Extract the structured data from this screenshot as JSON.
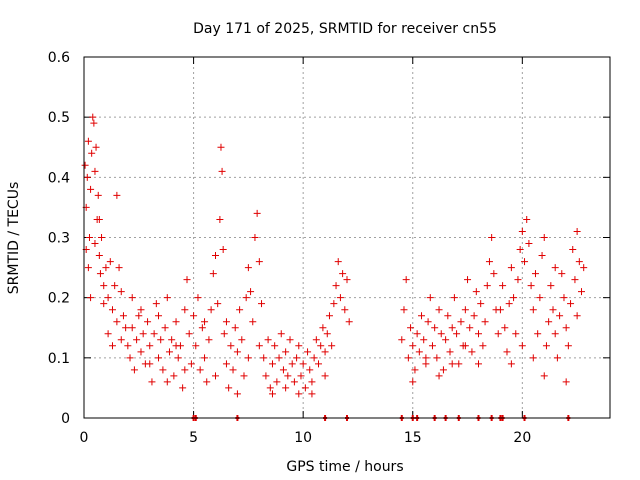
{
  "chart_data": {
    "type": "scatter",
    "title": "Day 171 of 2025, SRMTID for receiver cn55",
    "xlabel": "GPS time / hours",
    "ylabel": "SRMTID / TECUs",
    "xlim": [
      0,
      24
    ],
    "ylim": [
      0,
      0.6
    ],
    "xticks": [
      0,
      5,
      10,
      15,
      20
    ],
    "xtick_labels": [
      "0",
      "5",
      "10",
      "15",
      "20"
    ],
    "yticks": [
      0,
      0.1,
      0.2,
      0.3,
      0.4,
      0.5,
      0.6
    ],
    "ytick_labels": [
      "0",
      "0.1",
      "0.2",
      "0.3",
      "0.4",
      "0.5",
      "0.6"
    ],
    "grid": true,
    "marker": "+",
    "color": "#e00000",
    "series": [
      {
        "name": "SRMTID",
        "points": [
          [
            0.05,
            0.42
          ],
          [
            0.1,
            0.35
          ],
          [
            0.15,
            0.4
          ],
          [
            0.2,
            0.46
          ],
          [
            0.25,
            0.3
          ],
          [
            0.3,
            0.38
          ],
          [
            0.35,
            0.44
          ],
          [
            0.4,
            0.5
          ],
          [
            0.45,
            0.49
          ],
          [
            0.5,
            0.41
          ],
          [
            0.55,
            0.45
          ],
          [
            0.6,
            0.33
          ],
          [
            0.65,
            0.37
          ],
          [
            0.7,
            0.27
          ],
          [
            0.75,
            0.24
          ],
          [
            0.8,
            0.3
          ],
          [
            0.9,
            0.22
          ],
          [
            1.0,
            0.25
          ],
          [
            1.1,
            0.2
          ],
          [
            1.2,
            0.26
          ],
          [
            1.3,
            0.18
          ],
          [
            1.4,
            0.22
          ],
          [
            1.5,
            0.37
          ],
          [
            1.6,
            0.25
          ],
          [
            1.7,
            0.21
          ],
          [
            1.8,
            0.17
          ],
          [
            1.9,
            0.15
          ],
          [
            0.1,
            0.28
          ],
          [
            0.2,
            0.25
          ],
          [
            0.3,
            0.2
          ],
          [
            0.5,
            0.29
          ],
          [
            0.7,
            0.33
          ],
          [
            0.9,
            0.19
          ],
          [
            1.1,
            0.14
          ],
          [
            1.3,
            0.12
          ],
          [
            1.5,
            0.16
          ],
          [
            1.7,
            0.13
          ],
          [
            2.0,
            0.12
          ],
          [
            2.1,
            0.1
          ],
          [
            2.2,
            0.15
          ],
          [
            2.3,
            0.08
          ],
          [
            2.4,
            0.13
          ],
          [
            2.5,
            0.17
          ],
          [
            2.6,
            0.11
          ],
          [
            2.7,
            0.14
          ],
          [
            2.8,
            0.09
          ],
          [
            2.9,
            0.16
          ],
          [
            3.0,
            0.12
          ],
          [
            3.1,
            0.06
          ],
          [
            3.2,
            0.14
          ],
          [
            3.3,
            0.19
          ],
          [
            3.4,
            0.1
          ],
          [
            3.5,
            0.13
          ],
          [
            3.6,
            0.08
          ],
          [
            3.7,
            0.15
          ],
          [
            3.8,
            0.2
          ],
          [
            3.9,
            0.11
          ],
          [
            4.0,
            0.13
          ],
          [
            4.1,
            0.07
          ],
          [
            4.2,
            0.16
          ],
          [
            4.3,
            0.1
          ],
          [
            4.4,
            0.12
          ],
          [
            4.5,
            0.05
          ],
          [
            4.6,
            0.18
          ],
          [
            4.7,
            0.23
          ],
          [
            4.8,
            0.14
          ],
          [
            4.9,
            0.09
          ],
          [
            5.0,
            0.17
          ],
          [
            2.2,
            0.2
          ],
          [
            2.6,
            0.18
          ],
          [
            3.0,
            0.09
          ],
          [
            3.4,
            0.17
          ],
          [
            3.8,
            0.06
          ],
          [
            4.2,
            0.12
          ],
          [
            4.6,
            0.08
          ],
          [
            5.1,
            0.12
          ],
          [
            5.2,
            0.2
          ],
          [
            5.3,
            0.08
          ],
          [
            5.4,
            0.15
          ],
          [
            5.5,
            0.1
          ],
          [
            5.6,
            0.06
          ],
          [
            5.7,
            0.13
          ],
          [
            5.8,
            0.18
          ],
          [
            5.9,
            0.24
          ],
          [
            6.0,
            0.27
          ],
          [
            6.1,
            0.19
          ],
          [
            6.2,
            0.33
          ],
          [
            6.25,
            0.45
          ],
          [
            6.3,
            0.41
          ],
          [
            6.35,
            0.28
          ],
          [
            6.4,
            0.14
          ],
          [
            6.5,
            0.09
          ],
          [
            6.6,
            0.05
          ],
          [
            6.7,
            0.12
          ],
          [
            6.8,
            0.08
          ],
          [
            6.9,
            0.15
          ],
          [
            7.0,
            0.11
          ],
          [
            7.1,
            0.18
          ],
          [
            7.2,
            0.13
          ],
          [
            7.3,
            0.07
          ],
          [
            7.4,
            0.2
          ],
          [
            7.5,
            0.25
          ],
          [
            7.6,
            0.21
          ],
          [
            7.7,
            0.16
          ],
          [
            7.8,
            0.3
          ],
          [
            7.9,
            0.34
          ],
          [
            8.0,
            0.26
          ],
          [
            8.1,
            0.19
          ],
          [
            5.5,
            0.16
          ],
          [
            6.0,
            0.07
          ],
          [
            6.5,
            0.16
          ],
          [
            7.0,
            0.04
          ],
          [
            7.5,
            0.1
          ],
          [
            8.0,
            0.12
          ],
          [
            8.2,
            0.1
          ],
          [
            8.3,
            0.07
          ],
          [
            8.4,
            0.13
          ],
          [
            8.5,
            0.05
          ],
          [
            8.6,
            0.09
          ],
          [
            8.7,
            0.12
          ],
          [
            8.8,
            0.06
          ],
          [
            8.9,
            0.1
          ],
          [
            9.0,
            0.14
          ],
          [
            9.1,
            0.08
          ],
          [
            9.2,
            0.11
          ],
          [
            9.3,
            0.07
          ],
          [
            9.4,
            0.13
          ],
          [
            9.5,
            0.09
          ],
          [
            9.6,
            0.06
          ],
          [
            9.7,
            0.1
          ],
          [
            9.8,
            0.12
          ],
          [
            9.9,
            0.07
          ],
          [
            10.0,
            0.09
          ],
          [
            10.1,
            0.05
          ],
          [
            10.2,
            0.11
          ],
          [
            10.3,
            0.08
          ],
          [
            10.4,
            0.06
          ],
          [
            10.5,
            0.1
          ],
          [
            10.6,
            0.13
          ],
          [
            10.7,
            0.09
          ],
          [
            10.8,
            0.12
          ],
          [
            10.9,
            0.15
          ],
          [
            11.0,
            0.11
          ],
          [
            11.1,
            0.14
          ],
          [
            11.2,
            0.17
          ],
          [
            11.3,
            0.12
          ],
          [
            11.4,
            0.19
          ],
          [
            11.5,
            0.22
          ],
          [
            11.6,
            0.26
          ],
          [
            11.7,
            0.2
          ],
          [
            11.8,
            0.24
          ],
          [
            11.9,
            0.18
          ],
          [
            12.0,
            0.23
          ],
          [
            12.1,
            0.16
          ],
          [
            8.6,
            0.04
          ],
          [
            9.2,
            0.05
          ],
          [
            9.8,
            0.04
          ],
          [
            10.4,
            0.04
          ],
          [
            11.0,
            0.07
          ],
          [
            14.5,
            0.13
          ],
          [
            14.6,
            0.18
          ],
          [
            14.7,
            0.23
          ],
          [
            14.8,
            0.1
          ],
          [
            14.9,
            0.15
          ],
          [
            15.0,
            0.12
          ],
          [
            15.1,
            0.08
          ],
          [
            15.2,
            0.14
          ],
          [
            15.3,
            0.11
          ],
          [
            15.4,
            0.17
          ],
          [
            15.5,
            0.13
          ],
          [
            15.6,
            0.09
          ],
          [
            15.7,
            0.16
          ],
          [
            15.8,
            0.2
          ],
          [
            15.9,
            0.12
          ],
          [
            16.0,
            0.15
          ],
          [
            16.1,
            0.1
          ],
          [
            16.2,
            0.18
          ],
          [
            16.3,
            0.14
          ],
          [
            16.4,
            0.08
          ],
          [
            16.5,
            0.13
          ],
          [
            16.6,
            0.17
          ],
          [
            16.7,
            0.11
          ],
          [
            16.8,
            0.15
          ],
          [
            16.9,
            0.2
          ],
          [
            17.0,
            0.14
          ],
          [
            17.1,
            0.09
          ],
          [
            17.2,
            0.16
          ],
          [
            17.3,
            0.12
          ],
          [
            17.4,
            0.18
          ],
          [
            17.5,
            0.23
          ],
          [
            17.6,
            0.15
          ],
          [
            17.7,
            0.11
          ],
          [
            17.8,
            0.17
          ],
          [
            17.9,
            0.21
          ],
          [
            18.0,
            0.14
          ],
          [
            18.1,
            0.19
          ],
          [
            18.2,
            0.12
          ],
          [
            18.3,
            0.16
          ],
          [
            18.4,
            0.22
          ],
          [
            18.5,
            0.26
          ],
          [
            18.6,
            0.3
          ],
          [
            18.7,
            0.24
          ],
          [
            18.8,
            0.18
          ],
          [
            18.9,
            0.14
          ],
          [
            15.0,
            0.06
          ],
          [
            15.6,
            0.1
          ],
          [
            16.2,
            0.07
          ],
          [
            16.8,
            0.09
          ],
          [
            17.4,
            0.12
          ],
          [
            18.0,
            0.09
          ],
          [
            19.0,
            0.18
          ],
          [
            19.1,
            0.22
          ],
          [
            19.2,
            0.15
          ],
          [
            19.3,
            0.11
          ],
          [
            19.4,
            0.19
          ],
          [
            19.5,
            0.25
          ],
          [
            19.6,
            0.2
          ],
          [
            19.7,
            0.14
          ],
          [
            19.8,
            0.23
          ],
          [
            19.9,
            0.28
          ],
          [
            20.0,
            0.31
          ],
          [
            20.1,
            0.26
          ],
          [
            20.2,
            0.33
          ],
          [
            20.3,
            0.29
          ],
          [
            20.4,
            0.22
          ],
          [
            20.5,
            0.18
          ],
          [
            20.6,
            0.24
          ],
          [
            20.7,
            0.14
          ],
          [
            20.8,
            0.2
          ],
          [
            20.9,
            0.27
          ],
          [
            21.0,
            0.3
          ],
          [
            21.1,
            0.12
          ],
          [
            21.2,
            0.16
          ],
          [
            21.3,
            0.22
          ],
          [
            21.4,
            0.18
          ],
          [
            21.5,
            0.14
          ],
          [
            21.6,
            0.1
          ],
          [
            21.7,
            0.17
          ],
          [
            21.8,
            0.24
          ],
          [
            21.9,
            0.2
          ],
          [
            22.0,
            0.15
          ],
          [
            22.1,
            0.12
          ],
          [
            22.2,
            0.19
          ],
          [
            22.3,
            0.28
          ],
          [
            22.4,
            0.23
          ],
          [
            22.5,
            0.17
          ],
          [
            22.6,
            0.26
          ],
          [
            22.7,
            0.21
          ],
          [
            22.8,
            0.25
          ],
          [
            19.5,
            0.09
          ],
          [
            20.0,
            0.12
          ],
          [
            20.5,
            0.1
          ],
          [
            21.0,
            0.07
          ],
          [
            21.5,
            0.25
          ],
          [
            22.0,
            0.06
          ],
          [
            22.5,
            0.31
          ]
        ]
      }
    ],
    "axis_markers_x": [
      5.0,
      5.1,
      7.0,
      11.0,
      12.0,
      14.5,
      15.0,
      15.2,
      16.0,
      16.5,
      17.1,
      18.0,
      18.6,
      19.0,
      19.1,
      20.1,
      22.1
    ]
  }
}
